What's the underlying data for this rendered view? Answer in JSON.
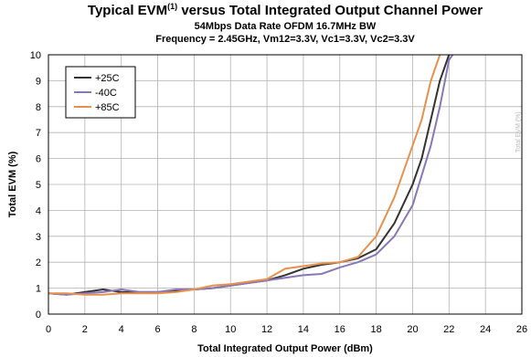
{
  "chart_data": {
    "type": "line",
    "title": "Typical EVM",
    "title_superscript": "(1)",
    "title_rest": " versus Total Integrated Output Channel Power",
    "subtitle1": "54Mbps Data Rate OFDM 16.7MHz BW",
    "subtitle2": "Frequency = 2.45GHz, Vm12=3.3V, Vc1=3.3V, Vc2=3.3V",
    "xlabel": "Total Integrated Output Power (dBm)",
    "ylabel": "Total EVM (%)",
    "side_label": "Total EVM (%)",
    "xlim": [
      0,
      26
    ],
    "ylim": [
      0,
      10
    ],
    "xticks": [
      "0",
      "2",
      "4",
      "6",
      "8",
      "10",
      "12",
      "14",
      "16",
      "18",
      "20",
      "22",
      "24",
      "26"
    ],
    "yticks": [
      "0",
      "1",
      "2",
      "3",
      "4",
      "5",
      "6",
      "7",
      "8",
      "9",
      "10"
    ],
    "grid": true,
    "legend_position": "top-left",
    "series": [
      {
        "name": "+25C",
        "color": "#333333",
        "points": [
          [
            0,
            0.8
          ],
          [
            1,
            0.75
          ],
          [
            2,
            0.85
          ],
          [
            3,
            0.95
          ],
          [
            4,
            0.85
          ],
          [
            5,
            0.85
          ],
          [
            6,
            0.85
          ],
          [
            7,
            0.9
          ],
          [
            8,
            0.95
          ],
          [
            9,
            1.0
          ],
          [
            10,
            1.1
          ],
          [
            11,
            1.2
          ],
          [
            12,
            1.3
          ],
          [
            13,
            1.5
          ],
          [
            14,
            1.75
          ],
          [
            15,
            1.9
          ],
          [
            16,
            2.0
          ],
          [
            17,
            2.15
          ],
          [
            18,
            2.5
          ],
          [
            19,
            3.5
          ],
          [
            20,
            5.0
          ],
          [
            20.5,
            6.0
          ],
          [
            21,
            7.5
          ],
          [
            21.5,
            9.0
          ],
          [
            22,
            10.0
          ]
        ]
      },
      {
        "name": "-40C",
        "color": "#8878b8",
        "points": [
          [
            0,
            0.8
          ],
          [
            1,
            0.75
          ],
          [
            2,
            0.8
          ],
          [
            3,
            0.85
          ],
          [
            4,
            0.95
          ],
          [
            5,
            0.85
          ],
          [
            6,
            0.85
          ],
          [
            7,
            0.95
          ],
          [
            8,
            0.95
          ],
          [
            9,
            1.0
          ],
          [
            10,
            1.1
          ],
          [
            11,
            1.2
          ],
          [
            12,
            1.3
          ],
          [
            13,
            1.4
          ],
          [
            14,
            1.5
          ],
          [
            15,
            1.55
          ],
          [
            16,
            1.8
          ],
          [
            17,
            2.0
          ],
          [
            18,
            2.3
          ],
          [
            19,
            3.0
          ],
          [
            20,
            4.2
          ],
          [
            21,
            6.5
          ],
          [
            21.5,
            8.0
          ],
          [
            22,
            9.8
          ],
          [
            22.2,
            10.0
          ]
        ]
      },
      {
        "name": "+85C",
        "color": "#e8914c",
        "points": [
          [
            0,
            0.8
          ],
          [
            1,
            0.8
          ],
          [
            2,
            0.75
          ],
          [
            3,
            0.75
          ],
          [
            4,
            0.8
          ],
          [
            5,
            0.8
          ],
          [
            6,
            0.8
          ],
          [
            7,
            0.85
          ],
          [
            8,
            0.95
          ],
          [
            9,
            1.1
          ],
          [
            10,
            1.15
          ],
          [
            11,
            1.25
          ],
          [
            12,
            1.35
          ],
          [
            13,
            1.75
          ],
          [
            14,
            1.85
          ],
          [
            15,
            1.95
          ],
          [
            16,
            2.0
          ],
          [
            17,
            2.2
          ],
          [
            18,
            3.0
          ],
          [
            19,
            4.5
          ],
          [
            20,
            6.5
          ],
          [
            20.5,
            7.5
          ],
          [
            21,
            9.0
          ],
          [
            21.5,
            10.0
          ]
        ]
      }
    ]
  }
}
